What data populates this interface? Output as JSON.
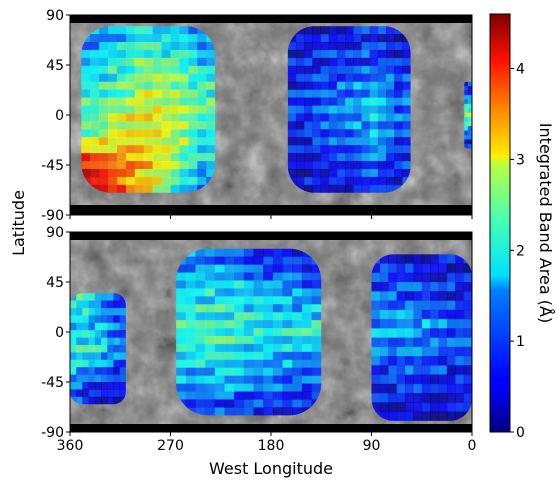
{
  "chart_data": [
    {
      "type": "heatmap",
      "panel": "top",
      "xlim": [
        360,
        0
      ],
      "ylim": [
        -90,
        90
      ],
      "y_ticks": [
        "90",
        "45",
        "0",
        "-45",
        "-90"
      ],
      "regions": [
        {
          "center_lon": 290,
          "center_lat": 5,
          "lon_span": 120,
          "lat_span": 150,
          "values_west_to_east_cols": [
            [
              1.2,
              1.6,
              1.8,
              2.0,
              2.2,
              3.6,
              4.2
            ],
            [
              1.4,
              1.9,
              2.1,
              2.5,
              2.8,
              3.2,
              3.6
            ],
            [
              1.8,
              2.2,
              2.5,
              2.8,
              3.0,
              3.1,
              3.0
            ],
            [
              1.6,
              2.0,
              2.3,
              2.6,
              2.7,
              2.5,
              2.0
            ],
            [
              1.2,
              1.6,
              1.9,
              2.0,
              1.9,
              1.6,
              1.2
            ]
          ]
        },
        {
          "center_lon": 110,
          "center_lat": 5,
          "lon_span": 110,
          "lat_span": 150,
          "values_west_to_east_cols": [
            [
              0.4,
              0.5,
              0.6,
              0.7,
              0.6,
              0.5,
              0.4
            ],
            [
              0.5,
              0.7,
              0.9,
              1.0,
              0.9,
              0.7,
              0.5
            ],
            [
              0.6,
              0.8,
              1.1,
              1.3,
              1.1,
              0.9,
              0.6
            ],
            [
              0.6,
              0.9,
              1.3,
              1.5,
              1.4,
              1.1,
              0.7
            ],
            [
              0.4,
              0.6,
              0.9,
              1.0,
              0.9,
              0.7,
              0.5
            ]
          ]
        },
        {
          "center_lon": 2,
          "center_lat": 0,
          "lon_span": 10,
          "lat_span": 60,
          "values_west_to_east_cols": [
            [
              0.6,
              1.6,
              2.4,
              1.4,
              0.5
            ]
          ]
        }
      ]
    },
    {
      "type": "heatmap",
      "panel": "bottom",
      "xlim": [
        360,
        0
      ],
      "ylim": [
        -90,
        90
      ],
      "x_ticks": [
        "360",
        "270",
        "180",
        "90",
        "0"
      ],
      "y_ticks": [
        "90",
        "45",
        "0",
        "-45",
        "-90"
      ],
      "regions": [
        {
          "center_lon": 200,
          "center_lat": 0,
          "lon_span": 130,
          "lat_span": 150,
          "values_west_to_east_cols": [
            [
              1.2,
              1.6,
              1.8,
              1.9,
              1.7,
              1.3,
              0.8
            ],
            [
              1.0,
              1.6,
              1.9,
              2.0,
              1.8,
              1.4,
              0.9
            ],
            [
              0.8,
              1.4,
              1.7,
              1.8,
              1.7,
              1.3,
              0.8
            ],
            [
              0.7,
              1.2,
              1.5,
              1.7,
              1.5,
              1.1,
              0.7
            ],
            [
              0.6,
              1.0,
              1.4,
              1.8,
              1.3,
              0.9,
              0.6
            ]
          ]
        },
        {
          "center_lon": 45,
          "center_lat": -5,
          "lon_span": 90,
          "lat_span": 150,
          "values_west_to_east_cols": [
            [
              0.7,
              0.9,
              1.3,
              1.0,
              0.7,
              0.5
            ],
            [
              0.6,
              0.9,
              1.4,
              1.1,
              0.8,
              0.5
            ],
            [
              0.5,
              0.8,
              1.2,
              1.0,
              0.7,
              0.4
            ],
            [
              0.4,
              0.6,
              0.9,
              0.8,
              0.6,
              0.4
            ]
          ]
        },
        {
          "center_lon": 335,
          "center_lat": -15,
          "lon_span": 50,
          "lat_span": 100,
          "values_west_to_east_cols": [
            [
              1.8,
              1.6,
              1.9,
              1.4,
              0.8
            ],
            [
              1.4,
              1.5,
              1.6,
              1.1,
              0.6
            ],
            [
              0.8,
              1.0,
              1.1,
              0.9,
              0.5
            ]
          ]
        }
      ]
    }
  ],
  "colorbar": {
    "label": "Integrated Band Area (Å)",
    "min": 0,
    "max": 4.6,
    "ticks": [
      {
        "value": 0,
        "label": "0"
      },
      {
        "value": 1,
        "label": "1"
      },
      {
        "value": 2,
        "label": "2"
      },
      {
        "value": 3,
        "label": "3"
      },
      {
        "value": 4,
        "label": "4"
      }
    ],
    "colormap": "jet"
  },
  "axes": {
    "xlabel": "West Longitude",
    "ylabel": "Latitude"
  }
}
